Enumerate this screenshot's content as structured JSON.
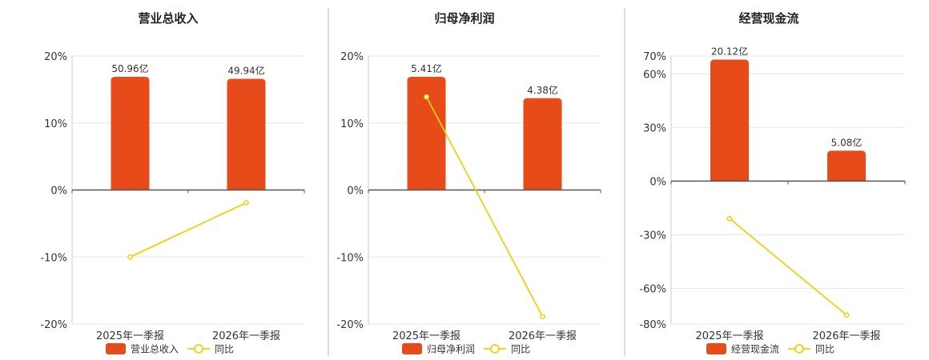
{
  "colors": {
    "bar": "#E84B1A",
    "line": "#F2CF0C",
    "grid": "#E6E6E6",
    "axis": "#555555",
    "divider": "#BBBBBB"
  },
  "chart_data": [
    {
      "type": "bar",
      "title": "营业总收入",
      "categories": [
        "2025年一季报",
        "2026年一季报"
      ],
      "yticks": [
        "20%",
        "10%",
        "0%",
        "-10%",
        "-20%"
      ],
      "ylim": [
        -20,
        20
      ],
      "series": [
        {
          "name": "营业总收入",
          "type": "bar",
          "values": [
            16.9,
            16.6
          ],
          "labels": [
            "50.96亿",
            "49.94亿"
          ]
        },
        {
          "name": "同比",
          "type": "line",
          "values": [
            -10.0,
            -1.9
          ]
        }
      ]
    },
    {
      "type": "bar",
      "title": "归母净利润",
      "categories": [
        "2025年一季报",
        "2026年一季报"
      ],
      "yticks": [
        "20%",
        "10%",
        "0%",
        "-10%",
        "-20%"
      ],
      "ylim": [
        -20,
        20
      ],
      "series": [
        {
          "name": "归母净利润",
          "type": "bar",
          "values": [
            16.9,
            13.7
          ],
          "labels": [
            "5.41亿",
            "4.38亿"
          ]
        },
        {
          "name": "同比",
          "type": "line",
          "values": [
            13.9,
            -18.9
          ]
        }
      ]
    },
    {
      "type": "bar",
      "title": "经营现金流",
      "categories": [
        "2025年一季报",
        "2026年一季报"
      ],
      "yticks": [
        "70%",
        "60%",
        "30%",
        "0%",
        "-30%",
        "-60%",
        "-80%"
      ],
      "ylim": [
        -80,
        70
      ],
      "series": [
        {
          "name": "经营现金流",
          "type": "bar",
          "values": [
            68,
            17
          ],
          "labels": [
            "20.12亿",
            "5.08亿"
          ]
        },
        {
          "name": "同比",
          "type": "line",
          "values": [
            -21,
            -75
          ]
        }
      ]
    }
  ]
}
